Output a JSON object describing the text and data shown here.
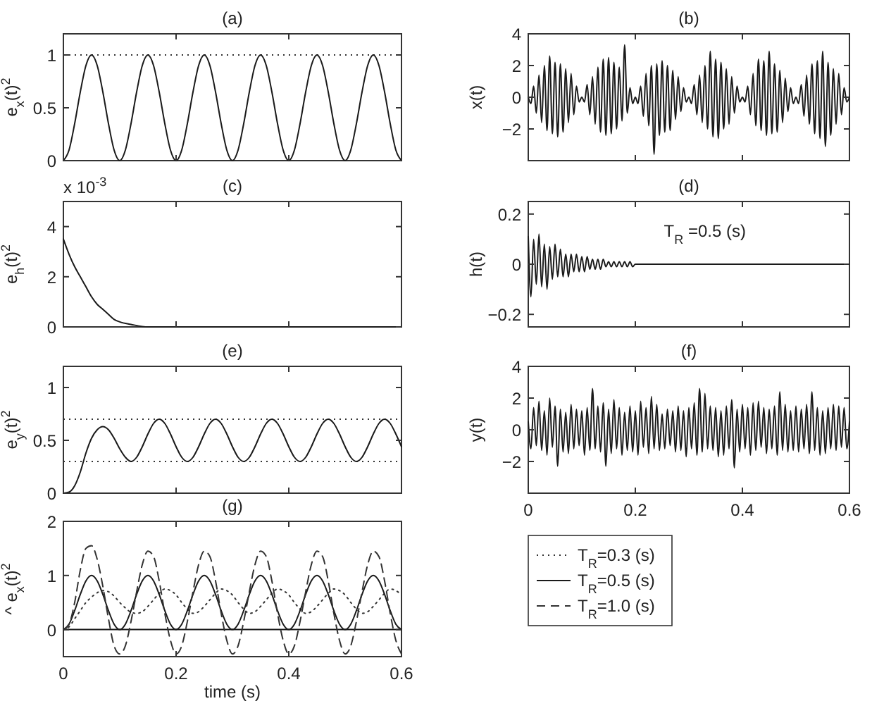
{
  "chart_data": [
    {
      "type": "line",
      "title": "(a)",
      "ylabel": "e$_{x}$(t)$^{2}$",
      "xlim": [
        0,
        0.6
      ],
      "xticks": [
        0,
        0.2,
        0.4,
        0.6
      ],
      "ylim": [
        0,
        1.2
      ],
      "yticks": [
        0,
        0.5,
        1
      ],
      "tick_labels": "y",
      "x": [
        0,
        0.01,
        0.02,
        0.03,
        0.04,
        0.05,
        0.06,
        0.07,
        0.08,
        0.09,
        0.1,
        0.11,
        0.12,
        0.13,
        0.14,
        0.15,
        0.16,
        0.17,
        0.18,
        0.19,
        0.2,
        0.21,
        0.22,
        0.23,
        0.24,
        0.25,
        0.26,
        0.27,
        0.28,
        0.29,
        0.3,
        0.31,
        0.32,
        0.33,
        0.34,
        0.35,
        0.36,
        0.37,
        0.38,
        0.39,
        0.4,
        0.41,
        0.42,
        0.43,
        0.44,
        0.45,
        0.46,
        0.47,
        0.48,
        0.49,
        0.5,
        0.51,
        0.52,
        0.53,
        0.54,
        0.55,
        0.56,
        0.57,
        0.58,
        0.59,
        0.6
      ],
      "series": [
        {
          "color": "#1a1a1a",
          "line_style": "solid",
          "values": [
            0,
            0.1,
            0.35,
            0.65,
            0.9,
            1,
            0.9,
            0.65,
            0.35,
            0.1,
            0,
            0.1,
            0.35,
            0.65,
            0.9,
            1,
            0.9,
            0.65,
            0.35,
            0.1,
            0,
            0.1,
            0.35,
            0.65,
            0.9,
            1,
            0.9,
            0.65,
            0.35,
            0.1,
            0,
            0.1,
            0.35,
            0.65,
            0.9,
            1,
            0.9,
            0.65,
            0.35,
            0.1,
            0,
            0.1,
            0.35,
            0.65,
            0.9,
            1,
            0.9,
            0.65,
            0.35,
            0.1,
            0,
            0.1,
            0.35,
            0.65,
            0.9,
            1,
            0.9,
            0.65,
            0.35,
            0.1,
            0
          ]
        }
      ],
      "ref_lines": [
        {
          "axis": "y",
          "value": 1,
          "line_style": "dotted",
          "color": "#333333"
        }
      ]
    },
    {
      "type": "line",
      "title": "(b)",
      "ylabel": "x(t)",
      "xlim": [
        0,
        0.6
      ],
      "xticks": [
        0,
        0.2,
        0.4,
        0.6
      ],
      "ylim": [
        -4,
        4
      ],
      "yticks": [
        -2,
        0,
        2,
        4
      ],
      "tick_labels": "y",
      "x": [
        0,
        0.005,
        0.01,
        0.015,
        0.02,
        0.025,
        0.03,
        0.035,
        0.04,
        0.045,
        0.05,
        0.055,
        0.06,
        0.065,
        0.07,
        0.075,
        0.08,
        0.085,
        0.09,
        0.095,
        0.1,
        0.105,
        0.11,
        0.115,
        0.12,
        0.125,
        0.13,
        0.135,
        0.14,
        0.145,
        0.15,
        0.155,
        0.16,
        0.165,
        0.17,
        0.175,
        0.18,
        0.185,
        0.19,
        0.195,
        0.2,
        0.205,
        0.21,
        0.215,
        0.22,
        0.225,
        0.23,
        0.235,
        0.24,
        0.245,
        0.25,
        0.255,
        0.26,
        0.265,
        0.27,
        0.275,
        0.28,
        0.285,
        0.29,
        0.295,
        0.3,
        0.305,
        0.31,
        0.315,
        0.32,
        0.325,
        0.33,
        0.335,
        0.34,
        0.345,
        0.35,
        0.355,
        0.36,
        0.365,
        0.37,
        0.375,
        0.38,
        0.385,
        0.39,
        0.395,
        0.4,
        0.405,
        0.41,
        0.415,
        0.42,
        0.425,
        0.43,
        0.435,
        0.44,
        0.445,
        0.45,
        0.455,
        0.46,
        0.465,
        0.47,
        0.475,
        0.48,
        0.485,
        0.49,
        0.495,
        0.5,
        0.505,
        0.51,
        0.515,
        0.52,
        0.525,
        0.53,
        0.535,
        0.54,
        0.545,
        0.55,
        0.555,
        0.56,
        0.565,
        0.57,
        0.575,
        0.58,
        0.585,
        0.59,
        0.595,
        0.6
      ],
      "series": [
        {
          "color": "#1a1a1a",
          "line_style": "solid",
          "values": [
            0,
            -0.4,
            0.7,
            -1.0,
            1.4,
            -1.6,
            2.0,
            -2.1,
            2.6,
            -2.3,
            2.2,
            -2.5,
            2.1,
            -2.2,
            1.8,
            -1.6,
            1.5,
            -1.1,
            0.7,
            -0.3,
            0,
            -0.3,
            0.8,
            -1.1,
            1.3,
            -1.7,
            1.9,
            -2.2,
            2.4,
            -2.4,
            2.5,
            -2.3,
            2.2,
            -2.0,
            1.9,
            -1.5,
            3.3,
            -1.0,
            0.6,
            -0.4,
            0,
            -0.4,
            0.7,
            -1.2,
            1.5,
            -1.8,
            2.0,
            -3.6,
            2.1,
            -2.4,
            2.3,
            -2.2,
            2.0,
            -2.1,
            1.7,
            -1.4,
            1.3,
            -0.9,
            0.6,
            -0.3,
            0,
            -0.4,
            0.8,
            -1.1,
            1.4,
            -1.6,
            2.0,
            -2.0,
            2.9,
            -2.5,
            2.4,
            -2.6,
            2.2,
            -2.0,
            1.8,
            -1.7,
            1.3,
            -1.0,
            0.7,
            -0.3,
            0,
            -0.3,
            0.7,
            -1.1,
            1.5,
            -1.8,
            2.4,
            -2.1,
            2.3,
            -2.4,
            2.9,
            -2.3,
            2.1,
            -2.2,
            1.7,
            -1.6,
            1.2,
            -0.9,
            0.6,
            -0.4,
            0,
            -0.4,
            0.8,
            -1.2,
            1.4,
            -1.7,
            2.1,
            -2.3,
            2.3,
            -2.6,
            2.9,
            -3.1,
            2.2,
            -2.4,
            1.8,
            -1.7,
            1.5,
            -1.1,
            0.6,
            -0.3,
            0
          ]
        }
      ]
    },
    {
      "type": "line",
      "title": "(c)",
      "ylabel": "e$_{h}$(t)$^{2}$",
      "annotations": [
        "x 10$^{-3}$"
      ],
      "xlim": [
        0,
        0.6
      ],
      "xticks": [
        0,
        0.2,
        0.4,
        0.6
      ],
      "ylim": [
        0,
        5
      ],
      "yticks": [
        0,
        2,
        4
      ],
      "tick_labels": "y",
      "x": [
        0,
        0.01,
        0.02,
        0.03,
        0.04,
        0.05,
        0.06,
        0.07,
        0.08,
        0.09,
        0.1,
        0.12,
        0.15,
        0.2,
        0.6
      ],
      "series": [
        {
          "color": "#1a1a1a",
          "line_style": "solid",
          "values": [
            3.5,
            2.9,
            2.4,
            2.0,
            1.6,
            1.2,
            0.9,
            0.7,
            0.5,
            0.3,
            0.2,
            0.1,
            0,
            0,
            0
          ]
        }
      ]
    },
    {
      "type": "line",
      "title": "(d)",
      "ylabel": "h(t)",
      "annotations": [
        "T$_{R}$ =0.5 (s)"
      ],
      "xlim": [
        0,
        0.6
      ],
      "xticks": [
        0,
        0.2,
        0.4,
        0.6
      ],
      "ylim": [
        -0.25,
        0.25
      ],
      "yticks": [
        -0.2,
        0,
        0.2
      ],
      "tick_labels": "y",
      "x": [
        0,
        0.005,
        0.01,
        0.015,
        0.02,
        0.025,
        0.03,
        0.035,
        0.04,
        0.045,
        0.05,
        0.055,
        0.06,
        0.065,
        0.07,
        0.075,
        0.08,
        0.085,
        0.09,
        0.095,
        0.1,
        0.105,
        0.11,
        0.115,
        0.12,
        0.125,
        0.13,
        0.135,
        0.14,
        0.145,
        0.15,
        0.155,
        0.16,
        0.165,
        0.17,
        0.175,
        0.18,
        0.185,
        0.19,
        0.195,
        0.2,
        0.6
      ],
      "series": [
        {
          "color": "#1a1a1a",
          "line_style": "solid",
          "values": [
            0.11,
            -0.13,
            0.1,
            -0.08,
            0.12,
            -0.09,
            0.08,
            -0.1,
            0.07,
            -0.06,
            0.08,
            -0.05,
            0.06,
            -0.05,
            0.04,
            -0.05,
            0.04,
            -0.03,
            0.04,
            -0.03,
            0.03,
            -0.03,
            0.03,
            -0.02,
            0.02,
            -0.02,
            0.02,
            -0.02,
            0.02,
            -0.01,
            0.01,
            -0.01,
            0.01,
            -0.01,
            0.01,
            -0.01,
            0.01,
            -0.01,
            0.01,
            -0.01,
            0,
            0
          ]
        }
      ]
    },
    {
      "type": "line",
      "title": "(e)",
      "ylabel": "e$_{y}$(t)$^{2}$",
      "xlim": [
        0,
        0.6
      ],
      "xticks": [
        0,
        0.2,
        0.4,
        0.6
      ],
      "ylim": [
        0,
        1.2
      ],
      "yticks": [
        0,
        0.5,
        1
      ],
      "tick_labels": "y",
      "x": [
        0,
        0.01,
        0.02,
        0.03,
        0.04,
        0.05,
        0.06,
        0.07,
        0.08,
        0.09,
        0.1,
        0.11,
        0.12,
        0.13,
        0.14,
        0.15,
        0.16,
        0.17,
        0.18,
        0.19,
        0.2,
        0.21,
        0.22,
        0.23,
        0.24,
        0.25,
        0.26,
        0.27,
        0.28,
        0.29,
        0.3,
        0.31,
        0.32,
        0.33,
        0.34,
        0.35,
        0.36,
        0.37,
        0.38,
        0.39,
        0.4,
        0.41,
        0.42,
        0.43,
        0.44,
        0.45,
        0.46,
        0.47,
        0.48,
        0.49,
        0.5,
        0.51,
        0.52,
        0.53,
        0.54,
        0.55,
        0.56,
        0.57,
        0.58,
        0.59,
        0.6
      ],
      "series": [
        {
          "color": "#1a1a1a",
          "line_style": "solid",
          "values": [
            0,
            0.01,
            0.07,
            0.2,
            0.38,
            0.52,
            0.6,
            0.63,
            0.6,
            0.52,
            0.42,
            0.34,
            0.3,
            0.34,
            0.44,
            0.56,
            0.66,
            0.7,
            0.66,
            0.56,
            0.44,
            0.34,
            0.3,
            0.34,
            0.44,
            0.56,
            0.66,
            0.7,
            0.66,
            0.56,
            0.44,
            0.34,
            0.3,
            0.34,
            0.44,
            0.56,
            0.66,
            0.7,
            0.66,
            0.56,
            0.44,
            0.34,
            0.3,
            0.34,
            0.44,
            0.56,
            0.66,
            0.7,
            0.66,
            0.56,
            0.44,
            0.34,
            0.3,
            0.34,
            0.44,
            0.56,
            0.66,
            0.7,
            0.66,
            0.56,
            0.44
          ]
        }
      ],
      "ref_lines": [
        {
          "axis": "y",
          "value": 0.7,
          "line_style": "dotted",
          "color": "#333333"
        },
        {
          "axis": "y",
          "value": 0.3,
          "line_style": "dotted",
          "color": "#333333"
        }
      ]
    },
    {
      "type": "line",
      "title": "(f)",
      "ylabel": "y(t)",
      "xlim": [
        0,
        0.6
      ],
      "xticks": [
        0,
        0.2,
        0.4,
        0.6
      ],
      "ylim": [
        -4,
        4
      ],
      "yticks": [
        -2,
        0,
        2,
        4
      ],
      "x": [
        0,
        0.005,
        0.01,
        0.015,
        0.02,
        0.025,
        0.03,
        0.035,
        0.04,
        0.045,
        0.05,
        0.055,
        0.06,
        0.065,
        0.07,
        0.075,
        0.08,
        0.085,
        0.09,
        0.095,
        0.1,
        0.105,
        0.11,
        0.115,
        0.12,
        0.125,
        0.13,
        0.135,
        0.14,
        0.145,
        0.15,
        0.155,
        0.16,
        0.165,
        0.17,
        0.175,
        0.18,
        0.185,
        0.19,
        0.195,
        0.2,
        0.205,
        0.21,
        0.215,
        0.22,
        0.225,
        0.23,
        0.235,
        0.24,
        0.245,
        0.25,
        0.255,
        0.26,
        0.265,
        0.27,
        0.275,
        0.28,
        0.285,
        0.29,
        0.295,
        0.3,
        0.305,
        0.31,
        0.315,
        0.32,
        0.325,
        0.33,
        0.335,
        0.34,
        0.345,
        0.35,
        0.355,
        0.36,
        0.365,
        0.37,
        0.375,
        0.38,
        0.385,
        0.39,
        0.395,
        0.4,
        0.405,
        0.41,
        0.415,
        0.42,
        0.425,
        0.43,
        0.435,
        0.44,
        0.445,
        0.45,
        0.455,
        0.46,
        0.465,
        0.47,
        0.475,
        0.48,
        0.485,
        0.49,
        0.495,
        0.5,
        0.505,
        0.51,
        0.515,
        0.52,
        0.525,
        0.53,
        0.535,
        0.54,
        0.545,
        0.55,
        0.555,
        0.56,
        0.565,
        0.57,
        0.575,
        0.58,
        0.585,
        0.59,
        0.595,
        0.6
      ],
      "series": [
        {
          "color": "#1a1a1a",
          "line_style": "solid",
          "values": [
            0.5,
            -1.2,
            1.4,
            -1.0,
            1.8,
            -1.3,
            1.2,
            -1.6,
            2.0,
            -1.1,
            1.5,
            -2.3,
            1.3,
            -1.4,
            1.1,
            -1.5,
            1.6,
            -1.2,
            1.3,
            -1.0,
            1.2,
            -1.6,
            1.4,
            -1.3,
            2.6,
            -1.2,
            1.5,
            -1.4,
            1.7,
            -2.3,
            1.3,
            -1.5,
            1.9,
            -1.2,
            1.4,
            -1.6,
            1.1,
            -1.3,
            1.5,
            -1.4,
            1.2,
            -1.6,
            1.8,
            -1.1,
            1.4,
            -1.5,
            2.1,
            -1.2,
            1.6,
            -1.3,
            1.0,
            -1.2,
            1.3,
            -1.0,
            1.2,
            -1.4,
            1.5,
            -1.3,
            1.2,
            -1.7,
            1.4,
            -1.2,
            1.7,
            -1.6,
            2.6,
            -1.4,
            2.3,
            -1.2,
            1.5,
            -1.3,
            1.4,
            -1.7,
            1.2,
            -1.6,
            1.5,
            -1.2,
            1.9,
            -2.4,
            1.3,
            -1.4,
            1.6,
            -1.2,
            1.4,
            -1.6,
            1.7,
            -1.3,
            1.8,
            -1.1,
            1.4,
            -1.5,
            1.3,
            -1.2,
            1.5,
            -1.6,
            2.4,
            -1.3,
            1.6,
            -1.4,
            1.2,
            -1.3,
            1.5,
            -1.4,
            1.3,
            -1.2,
            1.6,
            -1.5,
            2.4,
            -1.3,
            1.4,
            -1.6,
            1.2,
            -1.5,
            1.4,
            -1.2,
            1.6,
            -1.3,
            1.5,
            -1.1,
            1.4,
            -1.2,
            0.5
          ]
        }
      ]
    },
    {
      "type": "line",
      "title": "(g)",
      "xlabel": "time (s)",
      "ylabel": "^ e$_{x}$(t)$^{2}$",
      "xlim": [
        0,
        0.6
      ],
      "xticks": [
        0,
        0.2,
        0.4,
        0.6
      ],
      "ylim": [
        -0.5,
        2
      ],
      "yticks": [
        0,
        1,
        2
      ],
      "legend": "right",
      "x": [
        0,
        0.01,
        0.02,
        0.03,
        0.04,
        0.05,
        0.06,
        0.07,
        0.08,
        0.09,
        0.1,
        0.11,
        0.12,
        0.13,
        0.14,
        0.15,
        0.16,
        0.17,
        0.18,
        0.19,
        0.2,
        0.21,
        0.22,
        0.23,
        0.24,
        0.25,
        0.26,
        0.27,
        0.28,
        0.29,
        0.3,
        0.31,
        0.32,
        0.33,
        0.34,
        0.35,
        0.36,
        0.37,
        0.38,
        0.39,
        0.4,
        0.41,
        0.42,
        0.43,
        0.44,
        0.45,
        0.46,
        0.47,
        0.48,
        0.49,
        0.5,
        0.51,
        0.52,
        0.53,
        0.54,
        0.55,
        0.56,
        0.57,
        0.58,
        0.59,
        0.6
      ],
      "series": [
        {
          "name": "T$_{R}$=0.3 (s)",
          "color": "#333333",
          "line_style": "dotted",
          "values": [
            0,
            0.05,
            0.2,
            0.35,
            0.5,
            0.6,
            0.68,
            0.72,
            0.7,
            0.62,
            0.5,
            0.4,
            0.32,
            0.3,
            0.33,
            0.43,
            0.55,
            0.67,
            0.75,
            0.72,
            0.64,
            0.5,
            0.38,
            0.3,
            0.33,
            0.43,
            0.55,
            0.67,
            0.75,
            0.72,
            0.64,
            0.5,
            0.38,
            0.3,
            0.33,
            0.43,
            0.55,
            0.67,
            0.75,
            0.72,
            0.64,
            0.5,
            0.38,
            0.3,
            0.33,
            0.43,
            0.55,
            0.67,
            0.75,
            0.72,
            0.64,
            0.5,
            0.38,
            0.3,
            0.33,
            0.43,
            0.55,
            0.67,
            0.75,
            0.72,
            0.64
          ]
        },
        {
          "name": "T$_{R}$=0.5 (s)",
          "color": "#1a1a1a",
          "line_style": "solid",
          "values": [
            0,
            0.1,
            0.35,
            0.65,
            0.9,
            1,
            0.9,
            0.65,
            0.35,
            0.1,
            0,
            0.1,
            0.35,
            0.65,
            0.9,
            1,
            0.9,
            0.65,
            0.35,
            0.1,
            0,
            0.1,
            0.35,
            0.65,
            0.9,
            1,
            0.9,
            0.65,
            0.35,
            0.1,
            0,
            0.1,
            0.35,
            0.65,
            0.9,
            1,
            0.9,
            0.65,
            0.35,
            0.1,
            0,
            0.1,
            0.35,
            0.65,
            0.9,
            1,
            0.9,
            0.65,
            0.35,
            0.1,
            0,
            0.1,
            0.35,
            0.65,
            0.9,
            1,
            0.9,
            0.65,
            0.35,
            0.1,
            0
          ]
        },
        {
          "name": "T$_{R}$=1.0 (s)",
          "color": "#333333",
          "line_style": "dashed",
          "values": [
            0,
            0.1,
            0.5,
            1.1,
            1.5,
            1.55,
            1.3,
            0.8,
            0.2,
            -0.3,
            -0.45,
            -0.3,
            0.15,
            0.7,
            1.2,
            1.45,
            1.35,
            0.9,
            0.3,
            -0.2,
            -0.45,
            -0.3,
            0.15,
            0.7,
            1.2,
            1.45,
            1.35,
            0.9,
            0.3,
            -0.2,
            -0.45,
            -0.3,
            0.15,
            0.7,
            1.2,
            1.45,
            1.35,
            0.9,
            0.3,
            -0.2,
            -0.45,
            -0.3,
            0.15,
            0.7,
            1.2,
            1.45,
            1.35,
            0.9,
            0.3,
            -0.2,
            -0.45,
            -0.3,
            0.15,
            0.7,
            1.2,
            1.45,
            1.35,
            0.9,
            0.3,
            -0.2,
            -0.45
          ]
        }
      ],
      "ref_lines": [
        {
          "axis": "y",
          "value": 0,
          "line_style": "solid",
          "color": "#1a1a1a"
        }
      ]
    }
  ]
}
